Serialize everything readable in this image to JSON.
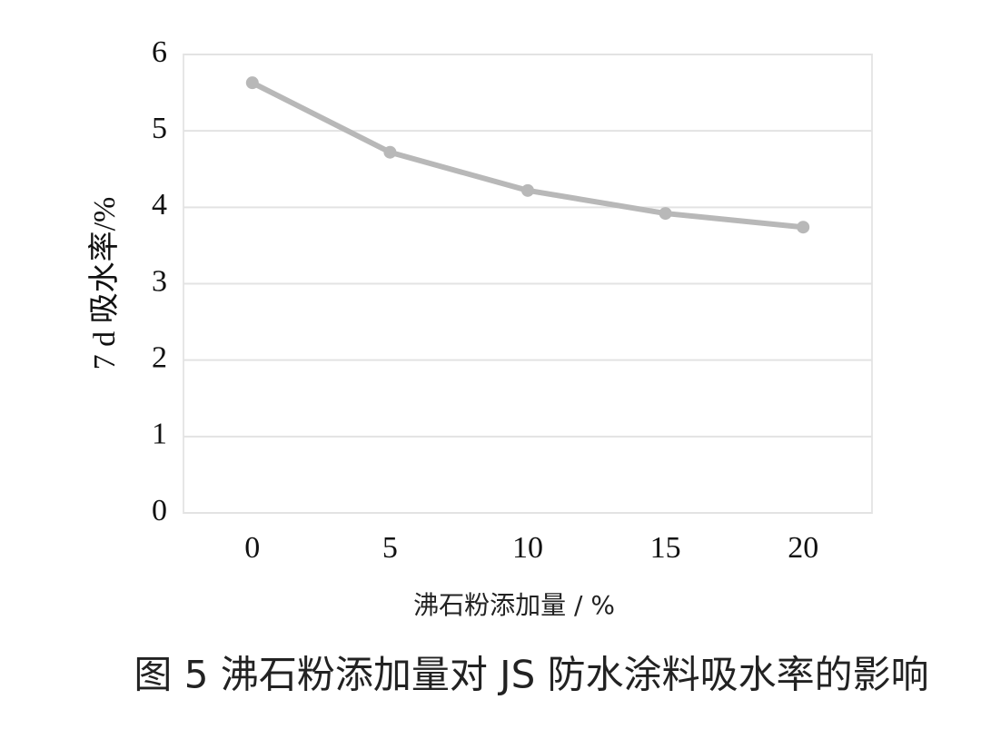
{
  "chart_data": {
    "type": "line",
    "xlabel": "沸石粉添加量 / %",
    "ylabel": "7 d 吸水率/%",
    "caption": "图 5 沸石粉添加量对 JS 防水涂料吸水率的影响",
    "categories": [
      "0",
      "5",
      "10",
      "15",
      "20"
    ],
    "series": [
      {
        "name": "7 d 吸水率",
        "color": "#b8b8b8",
        "values": [
          5.63,
          4.72,
          4.22,
          3.92,
          3.74
        ]
      }
    ],
    "ylim": [
      0,
      6
    ],
    "yticks": [
      0,
      1,
      2,
      3,
      4,
      5,
      6
    ],
    "grid": true
  }
}
